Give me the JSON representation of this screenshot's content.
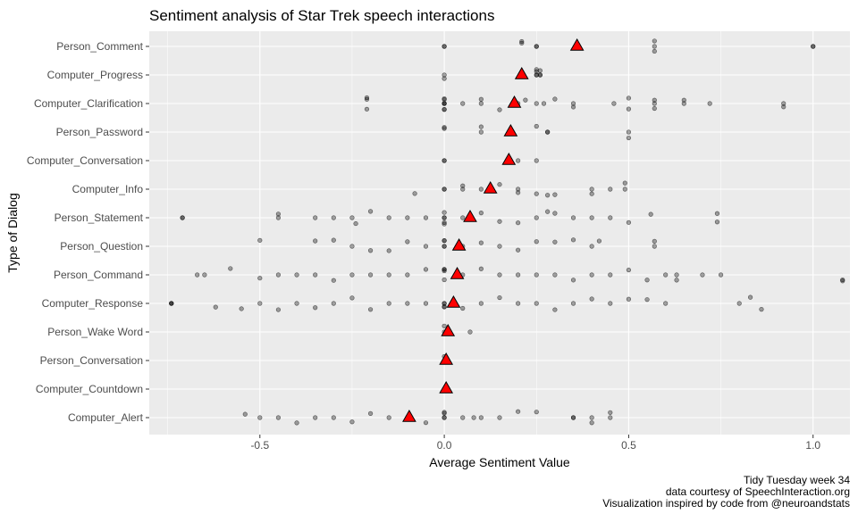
{
  "chart_data": {
    "type": "scatter",
    "title": "Sentiment analysis of Star Trek speech interactions",
    "xlabel": "Average Sentiment Value",
    "ylabel": "Type of Dialog",
    "xlim": [
      -0.8,
      1.1
    ],
    "xticks": [
      -0.5,
      0.0,
      0.5,
      1.0
    ],
    "xtick_labels": [
      "-0.5",
      "0.0",
      "0.5",
      "1.0"
    ],
    "grid": true,
    "categories": [
      "Person_Comment",
      "Computer_Progress",
      "Computer_Clarification",
      "Person_Password",
      "Computer_Conversation",
      "Computer_Info",
      "Person_Statement",
      "Person_Question",
      "Person_Command",
      "Computer_Response",
      "Person_Wake Word",
      "Person_Conversation",
      "Computer_Countdown",
      "Computer_Alert"
    ],
    "means": [
      0.36,
      0.21,
      0.19,
      0.18,
      0.175,
      0.125,
      0.07,
      0.04,
      0.035,
      0.025,
      0.01,
      0.005,
      0.005,
      -0.095
    ],
    "point_values": [
      [
        0,
        0,
        0.21,
        0.21,
        0.25,
        0.25,
        0.57,
        0.57,
        0.57,
        1.0,
        1.0
      ],
      [
        0,
        0,
        0.25,
        0.25,
        0.25,
        0.26,
        0.26,
        0.26,
        0.25
      ],
      [
        -0.21,
        -0.21,
        -0.21,
        0,
        0,
        0,
        0,
        0,
        0,
        0,
        0.05,
        0.1,
        0.1,
        0.15,
        0.2,
        0.22,
        0.25,
        0.27,
        0.3,
        0.35,
        0.35,
        0.46,
        0.5,
        0.5,
        0.57,
        0.57,
        0.57,
        0.65,
        0.65,
        0.72,
        0.92,
        0.92
      ],
      [
        0,
        0,
        0.1,
        0.1,
        0.25,
        0.28,
        0.28,
        0.5,
        0.5
      ],
      [
        0,
        0,
        0.2,
        0.25
      ],
      [
        -0.08,
        0,
        0,
        0.05,
        0.05,
        0.1,
        0.15,
        0.2,
        0.2,
        0.25,
        0.28,
        0.3,
        0.4,
        0.4,
        0.45,
        0.49,
        0.49
      ],
      [
        -0.71,
        -0.71,
        -0.45,
        -0.45,
        -0.35,
        -0.3,
        -0.25,
        -0.24,
        -0.2,
        -0.15,
        -0.1,
        -0.05,
        0,
        0,
        0,
        0,
        0,
        0.05,
        0.1,
        0.15,
        0.2,
        0.25,
        0.28,
        0.3,
        0.35,
        0.4,
        0.45,
        0.5,
        0.56,
        0.74,
        0.74
      ],
      [
        -0.5,
        -0.35,
        -0.3,
        -0.25,
        -0.2,
        -0.15,
        -0.1,
        -0.05,
        0,
        0,
        0,
        0,
        0.05,
        0.1,
        0.15,
        0.2,
        0.25,
        0.3,
        0.35,
        0.4,
        0.42,
        0.57,
        0.57
      ],
      [
        -0.67,
        -0.65,
        -0.58,
        -0.5,
        -0.45,
        -0.4,
        -0.35,
        -0.3,
        -0.25,
        -0.2,
        -0.15,
        -0.1,
        -0.05,
        0,
        0,
        0,
        0,
        0.05,
        0.1,
        0.15,
        0.2,
        0.25,
        0.3,
        0.35,
        0.4,
        0.45,
        0.5,
        0.55,
        0.6,
        0.63,
        0.63,
        0.7,
        0.75,
        1.08,
        1.08
      ],
      [
        -0.74,
        -0.74,
        -0.74,
        -0.62,
        -0.55,
        -0.5,
        -0.45,
        -0.4,
        -0.35,
        -0.3,
        -0.25,
        -0.2,
        -0.15,
        -0.1,
        -0.05,
        0,
        0,
        0,
        0,
        0.05,
        0.1,
        0.15,
        0.2,
        0.25,
        0.3,
        0.35,
        0.4,
        0.45,
        0.5,
        0.55,
        0.6,
        0.8,
        0.83,
        0.86
      ],
      [
        0,
        0,
        0.07
      ],
      [
        0
      ],
      [
        0
      ],
      [
        -0.54,
        -0.5,
        -0.45,
        -0.4,
        -0.35,
        -0.3,
        -0.25,
        -0.2,
        -0.15,
        -0.1,
        -0.05,
        0,
        0,
        0,
        0,
        0.05,
        0.08,
        0.1,
        0.15,
        0.2,
        0.25,
        0.35,
        0.35,
        0.4,
        0.4,
        0.45,
        0.45
      ]
    ],
    "point_color": "#000000",
    "mean_color": "#ff0000",
    "panel_background": "#ebebeb",
    "grid_color": "#ffffff"
  },
  "caption": {
    "line1": "Tidy Tuesday week 34",
    "line2": "data courtesy of SpeechInteraction.org",
    "line3": "Visualization inspired by code from @neuroandstats"
  }
}
